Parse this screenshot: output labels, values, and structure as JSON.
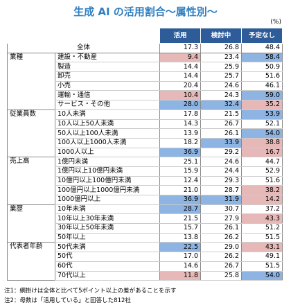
{
  "title": "生成 AI の活用割合～属性別～",
  "unit": "(%)",
  "header": [
    "活用",
    "検討中",
    "予定なし"
  ],
  "total": {
    "label": "全体",
    "values": [
      "17.3",
      "26.8",
      "48.4"
    ],
    "shades": [
      null,
      null,
      null
    ]
  },
  "groups": [
    {
      "label": "業種",
      "rows": [
        {
          "label": "建設・不動産",
          "values": [
            "9.4",
            "23.4",
            "58.4"
          ],
          "shades": [
            "#e6b9b8",
            null,
            "#8db4e2"
          ]
        },
        {
          "label": "製造",
          "values": [
            "14.4",
            "25.9",
            "50.9"
          ],
          "shades": [
            null,
            null,
            null
          ]
        },
        {
          "label": "卸売",
          "values": [
            "14.4",
            "25.7",
            "51.6"
          ],
          "shades": [
            null,
            null,
            null
          ]
        },
        {
          "label": "小売",
          "values": [
            "20.4",
            "24.6",
            "46.1"
          ],
          "shades": [
            null,
            null,
            null
          ]
        },
        {
          "label": "運輸・通信",
          "values": [
            "10.4",
            "24.3",
            "59.0"
          ],
          "shades": [
            "#e6b9b8",
            null,
            "#8db4e2"
          ]
        },
        {
          "label": "サービス・その他",
          "values": [
            "28.0",
            "32.4",
            "35.2"
          ],
          "shades": [
            "#8db4e2",
            "#8db4e2",
            "#e6b9b8"
          ]
        }
      ]
    },
    {
      "label": "従業員数",
      "rows": [
        {
          "label": "10人未満",
          "values": [
            "17.8",
            "21.5",
            "53.9"
          ],
          "shades": [
            null,
            null,
            "#8db4e2"
          ]
        },
        {
          "label": "10人以上50人未満",
          "values": [
            "14.3",
            "26.7",
            "52.1"
          ],
          "shades": [
            null,
            null,
            null
          ]
        },
        {
          "label": "50人以上100人未満",
          "values": [
            "13.9",
            "26.1",
            "54.0"
          ],
          "shades": [
            null,
            null,
            "#8db4e2"
          ]
        },
        {
          "label": "100人以上1000人未満",
          "values": [
            "18.2",
            "33.9",
            "38.8"
          ],
          "shades": [
            null,
            "#8db4e2",
            "#e6b9b8"
          ]
        },
        {
          "label": "1000人以上",
          "values": [
            "36.9",
            "29.2",
            "16.7"
          ],
          "shades": [
            "#8db4e2",
            null,
            "#e6b9b8"
          ]
        }
      ]
    },
    {
      "label": "売上高",
      "rows": [
        {
          "label": "1億円未満",
          "values": [
            "25.1",
            "24.6",
            "44.7"
          ],
          "shades": [
            null,
            null,
            null
          ]
        },
        {
          "label": "1億円以上10億円未満",
          "values": [
            "15.9",
            "24.4",
            "52.9"
          ],
          "shades": [
            null,
            null,
            null
          ]
        },
        {
          "label": "10億円以上100億円未満",
          "values": [
            "12.4",
            "29.3",
            "51.6"
          ],
          "shades": [
            null,
            null,
            null
          ]
        },
        {
          "label": "100億円以上1000億円未満",
          "values": [
            "21.0",
            "28.7",
            "38.2"
          ],
          "shades": [
            null,
            null,
            "#e6b9b8"
          ]
        },
        {
          "label": "1000億円以上",
          "values": [
            "36.9",
            "31.9",
            "14.2"
          ],
          "shades": [
            "#8db4e2",
            "#8db4e2",
            "#e6b9b8"
          ]
        }
      ]
    },
    {
      "label": "業歴",
      "rows": [
        {
          "label": "10年未満",
          "values": [
            "28.7",
            "30.7",
            "37.2"
          ],
          "shades": [
            "#8db4e2",
            null,
            null
          ]
        },
        {
          "label": "10年以上30年未満",
          "values": [
            "21.5",
            "27.9",
            "43.3"
          ],
          "shades": [
            null,
            null,
            "#e6b9b8"
          ]
        },
        {
          "label": "30年以上50年未満",
          "values": [
            "15.7",
            "26.1",
            "51.2"
          ],
          "shades": [
            null,
            null,
            null
          ]
        },
        {
          "label": "50年以上",
          "values": [
            "13.8",
            "26.2",
            "51.5"
          ],
          "shades": [
            null,
            null,
            null
          ]
        }
      ]
    },
    {
      "label": "代表者年齢",
      "rows": [
        {
          "label": "50代未満",
          "values": [
            "22.5",
            "29.0",
            "43.1"
          ],
          "shades": [
            "#8db4e2",
            null,
            "#e6b9b8"
          ]
        },
        {
          "label": "50代",
          "values": [
            "17.0",
            "26.2",
            "49.1"
          ],
          "shades": [
            null,
            null,
            null
          ]
        },
        {
          "label": "60代",
          "values": [
            "14.6",
            "26.7",
            "51.5"
          ],
          "shades": [
            null,
            null,
            null
          ]
        },
        {
          "label": "70代以上",
          "values": [
            "11.8",
            "25.8",
            "54.0"
          ],
          "shades": [
            "#e6b9b8",
            null,
            "#8db4e2"
          ]
        }
      ]
    }
  ],
  "notes": [
    "注1：網掛けは全体と比べて5ポイント以上の差があることを示す",
    "注2：母数は「活用している」と回答した812社"
  ]
}
